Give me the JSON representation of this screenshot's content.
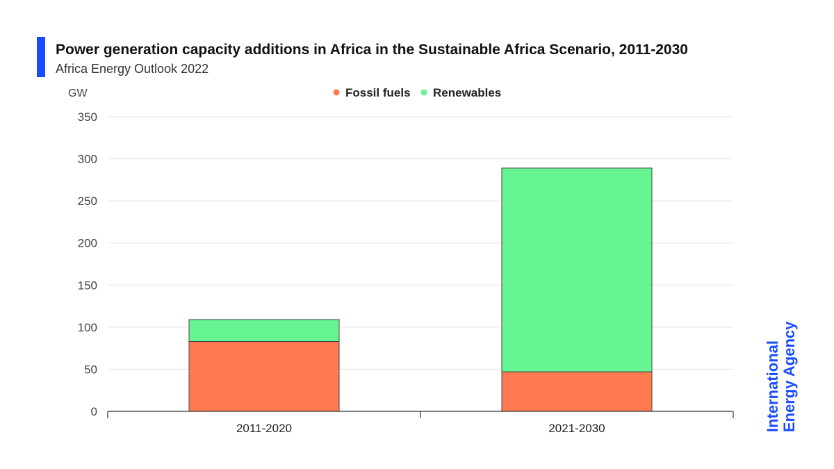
{
  "header": {
    "title": "Power generation capacity additions in Africa in the Sustainable Africa Scenario, 2011-2030",
    "subtitle": "Africa Energy Outlook 2022"
  },
  "brand": {
    "line1": "International",
    "line2": "Energy Agency"
  },
  "colors": {
    "accent": "#1a4cff",
    "fossil": "#ff7a50",
    "renewables": "#66f592",
    "grid": "#e3e3e3",
    "axis": "#333333"
  },
  "chart_data": {
    "type": "bar",
    "stacked": true,
    "title": "Power generation capacity additions in Africa in the Sustainable Africa Scenario, 2011-2030",
    "ylabel": "GW",
    "xlabel": "",
    "ylim": [
      0,
      350
    ],
    "yticks": [
      0,
      50,
      100,
      150,
      200,
      250,
      300,
      350
    ],
    "categories": [
      "2011-2020",
      "2021-2030"
    ],
    "series": [
      {
        "name": "Fossil fuels",
        "values": [
          83,
          47
        ]
      },
      {
        "name": "Renewables",
        "values": [
          26,
          242
        ]
      }
    ],
    "legend_position": "top-center",
    "grid": true
  }
}
